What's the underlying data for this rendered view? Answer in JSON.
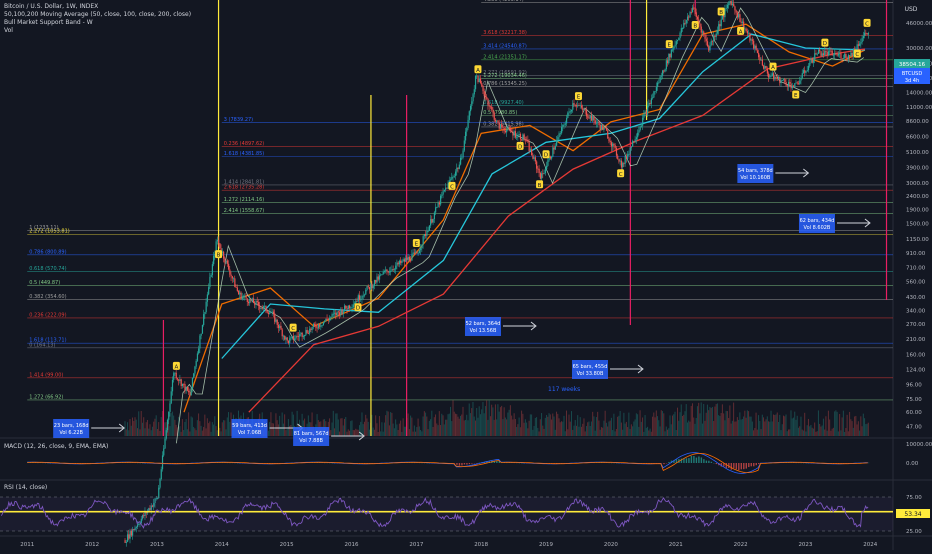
{
  "header": {
    "symbol_line": "Bitcoin / U.S. Dollar, 1W, INDEX",
    "ma_line": "50,100,200 Moving Average (50, close, 100, close, 200, close)",
    "bmsb_line": "Bull Market Support Band - W",
    "vol_line": "Vol",
    "currency": "USD"
  },
  "price": {
    "last": "38504.16",
    "ticker": "BTCUSD",
    "countdown": "3d 4h"
  },
  "colors": {
    "background": "#131722",
    "up": "#26a69a",
    "down": "#ef5350",
    "ma50": "#ef6c00",
    "ma100": "#26c6da",
    "ma200": "#e53935",
    "bmsb": "#c8e6c9",
    "rsi": "#7e57c2",
    "accent_yellow": "#ffeb3b",
    "accent_pink": "#e91e63",
    "box": "#2962ff"
  },
  "chart_data": [
    {
      "type": "line",
      "title": "",
      "scale": "log",
      "y_tick_labels": [
        "62000.00",
        "46000.00",
        "30000.00",
        "23000.00",
        "18000.00",
        "14000.00",
        "11000.00",
        "8600.00",
        "6600.00",
        "5100.00",
        "3900.00",
        "3000.00",
        "2400.00",
        "1900.00",
        "1500.00",
        "1150.00",
        "910.00",
        "710.00",
        "560.00",
        "430.00",
        "340.00",
        "270.00",
        "210.00",
        "160.00",
        "124.00",
        "96.00",
        "75.00",
        "60.00",
        "47.00"
      ],
      "x_tick_labels": [
        "2011",
        "2012",
        "2013",
        "2014",
        "2015",
        "2016",
        "2017",
        "2018",
        "2019",
        "2020",
        "2021",
        "2022",
        "2023",
        "2024"
      ],
      "price_path_points": [
        {
          "x": "2011-06",
          "y": 20
        },
        {
          "x": "2012-06",
          "y": 6
        },
        {
          "x": "2013-01",
          "y": 14
        },
        {
          "x": "2013-04",
          "y": 120
        },
        {
          "x": "2013-07",
          "y": 80
        },
        {
          "x": "2013-12",
          "y": 1150
        },
        {
          "x": "2014-04",
          "y": 450
        },
        {
          "x": "2014-10",
          "y": 330
        },
        {
          "x": "2015-01",
          "y": 200
        },
        {
          "x": "2015-07",
          "y": 270
        },
        {
          "x": "2016-01",
          "y": 380
        },
        {
          "x": "2016-07",
          "y": 650
        },
        {
          "x": "2017-01",
          "y": 900
        },
        {
          "x": "2017-06",
          "y": 2600
        },
        {
          "x": "2017-09",
          "y": 4200
        },
        {
          "x": "2017-12",
          "y": 19000
        },
        {
          "x": "2018-04",
          "y": 8000
        },
        {
          "x": "2018-09",
          "y": 6400
        },
        {
          "x": "2018-12",
          "y": 3300
        },
        {
          "x": "2019-06",
          "y": 12000
        },
        {
          "x": "2019-12",
          "y": 7200
        },
        {
          "x": "2020-03",
          "y": 4000
        },
        {
          "x": "2020-08",
          "y": 11500
        },
        {
          "x": "2020-12",
          "y": 28000
        },
        {
          "x": "2021-04",
          "y": 60000
        },
        {
          "x": "2021-07",
          "y": 30000
        },
        {
          "x": "2021-11",
          "y": 68000
        },
        {
          "x": "2022-06",
          "y": 19000
        },
        {
          "x": "2022-11",
          "y": 15500
        },
        {
          "x": "2023-03",
          "y": 28000
        },
        {
          "x": "2023-09",
          "y": 26000
        },
        {
          "x": "2023-12",
          "y": 38504
        }
      ],
      "moving_averages": [
        {
          "name": "MA50",
          "points": [
            {
              "x": "2013-06",
              "y": 60
            },
            {
              "x": "2014-01",
              "y": 380
            },
            {
              "x": "2014-10",
              "y": 500
            },
            {
              "x": "2015-06",
              "y": 260
            },
            {
              "x": "2016-06",
              "y": 420
            },
            {
              "x": "2017-06",
              "y": 1600
            },
            {
              "x": "2018-01",
              "y": 7000
            },
            {
              "x": "2018-10",
              "y": 8000
            },
            {
              "x": "2019-06",
              "y": 5200
            },
            {
              "x": "2020-01",
              "y": 8500
            },
            {
              "x": "2020-10",
              "y": 10500
            },
            {
              "x": "2021-06",
              "y": 38000
            },
            {
              "x": "2022-02",
              "y": 45000
            },
            {
              "x": "2022-10",
              "y": 28000
            },
            {
              "x": "2023-06",
              "y": 22000
            },
            {
              "x": "2023-12",
              "y": 29000
            }
          ]
        },
        {
          "name": "MA100",
          "points": [
            {
              "x": "2014-01",
              "y": 150
            },
            {
              "x": "2014-10",
              "y": 380
            },
            {
              "x": "2015-08",
              "y": 350
            },
            {
              "x": "2016-06",
              "y": 330
            },
            {
              "x": "2017-06",
              "y": 800
            },
            {
              "x": "2018-03",
              "y": 3500
            },
            {
              "x": "2019-01",
              "y": 6000
            },
            {
              "x": "2020-01",
              "y": 7000
            },
            {
              "x": "2020-10",
              "y": 9000
            },
            {
              "x": "2021-06",
              "y": 20000
            },
            {
              "x": "2022-03",
              "y": 38000
            },
            {
              "x": "2023-01",
              "y": 30000
            },
            {
              "x": "2023-12",
              "y": 29000
            }
          ]
        },
        {
          "name": "MA200",
          "points": [
            {
              "x": "2014-06",
              "y": 60
            },
            {
              "x": "2015-06",
              "y": 190
            },
            {
              "x": "2016-06",
              "y": 260
            },
            {
              "x": "2017-06",
              "y": 450
            },
            {
              "x": "2018-06",
              "y": 1700
            },
            {
              "x": "2019-06",
              "y": 3800
            },
            {
              "x": "2020-06",
              "y": 6200
            },
            {
              "x": "2021-06",
              "y": 9500
            },
            {
              "x": "2022-06",
              "y": 21000
            },
            {
              "x": "2023-06",
              "y": 27000
            },
            {
              "x": "2023-12",
              "y": 29500
            }
          ]
        }
      ],
      "fib_levels": [
        {
          "label": "4.236 (4263.14)",
          "price": 65000
        },
        {
          "label": "3.618 (32217.38)",
          "price": 37000
        },
        {
          "label": "3.414 (24540.87)",
          "price": 29500
        },
        {
          "label": "2.414 (21351.17)",
          "price": 24500
        },
        {
          "label": "2.272 (16591.92)",
          "price": 18800
        },
        {
          "label": "1.272 (19034.46)",
          "price": 17800
        },
        {
          "label": "0.786 (15345.25)",
          "price": 15500
        },
        {
          "label": "0.618 (9927.40)",
          "price": 11200
        },
        {
          "label": "0.5 (7980.85)",
          "price": 9500
        },
        {
          "label": "0.382 (6415.98)",
          "price": 7800
        },
        {
          "label": "3 (7839.27)",
          "price": 8400
        },
        {
          "label": "0.236 (4897.62)",
          "price": 5600
        },
        {
          "label": "1.618 (4381.85)",
          "price": 4700
        },
        {
          "label": "2.618 (2735.28)",
          "price": 2650
        },
        {
          "label": "1.414 (2841.81)",
          "price": 2900
        },
        {
          "label": "1.272 (2114.16)",
          "price": 2150
        },
        {
          "label": "2.414 (1558.67)",
          "price": 1780
        },
        {
          "label": "2.272 (1053.81)",
          "price": 1250
        },
        {
          "label": "1 (1233.11)",
          "price": 1330
        },
        {
          "label": "0.786 (800.89)",
          "price": 880
        },
        {
          "label": "0.618 (570.74)",
          "price": 660
        },
        {
          "label": "0.5 (449.87)",
          "price": 520
        },
        {
          "label": "0.382 (354.60)",
          "price": 410
        },
        {
          "label": "0.236 (222.09)",
          "price": 300
        },
        {
          "label": "0 (164.13)",
          "price": 180
        },
        {
          "label": "1.618 (113.71)",
          "price": 195
        },
        {
          "label": "1.414 (99.00)",
          "price": 108
        },
        {
          "label": "1.272 (66.92)",
          "price": 74
        }
      ],
      "wave_labels": [
        "A",
        "B",
        "C",
        "D",
        "E",
        "C",
        "A",
        "B",
        "E",
        "C",
        "D",
        "B",
        "A",
        "E",
        "D",
        "C",
        "B",
        "A",
        "C",
        "D",
        "E"
      ],
      "range_boxes": [
        {
          "bars": "23 bars, 168d",
          "vol": "Vol 6.22B"
        },
        {
          "bars": "59 bars, 413d",
          "vol": "Vol 7.06B"
        },
        {
          "bars": "81 bars, 567d",
          "vol": "Vol 7.88B"
        },
        {
          "bars": "52 bars, 364d",
          "vol": "Vol 13.56B"
        },
        {
          "bars": "65 bars, 455d",
          "vol": "Vol 33.80B"
        },
        {
          "bars": "54 bars, 378d",
          "vol": "Vol 10.160B"
        },
        {
          "bars": "62 bars, 434d",
          "vol": "Vol 8.602B"
        }
      ],
      "annotation": "117 weeks"
    },
    {
      "type": "line",
      "title": "MACD (12, 26, close, 9, EMA, EMA)",
      "y_tick_labels": [
        "10000.00",
        "0.00"
      ]
    },
    {
      "type": "line",
      "title": "RSI (14, close)",
      "y_tick_labels": [
        "75.00",
        "25.00"
      ],
      "last_value": "53.34",
      "ylim": [
        0,
        100
      ]
    }
  ]
}
